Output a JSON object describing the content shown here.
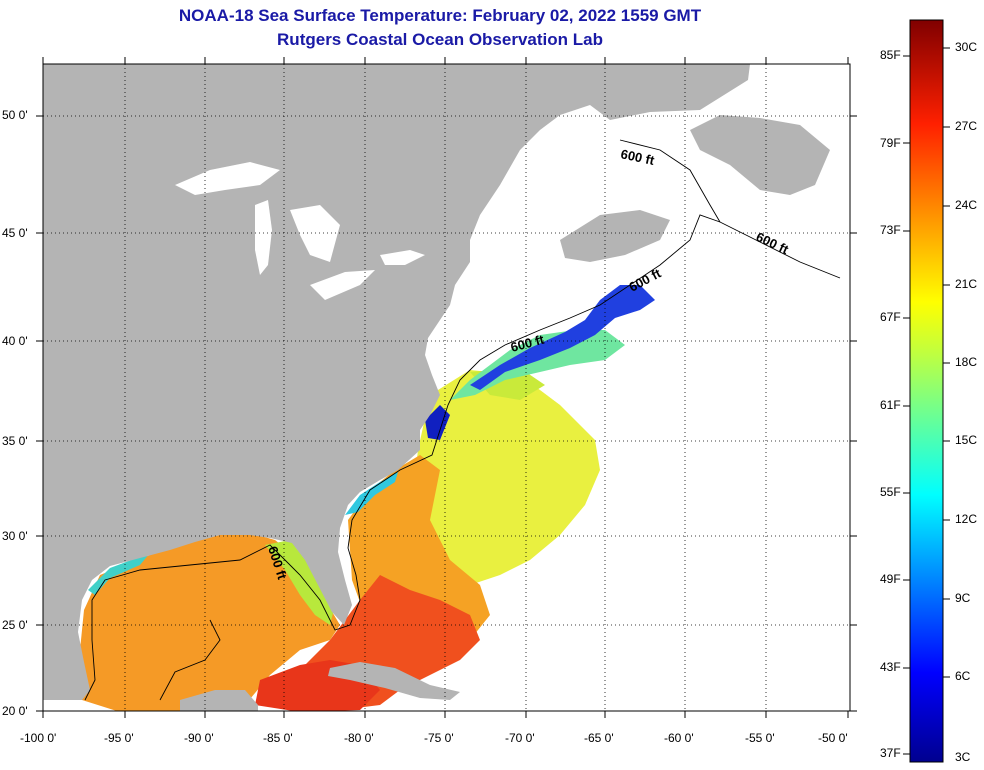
{
  "title": "NOAA-18 Sea Surface Temperature:  February 02, 2022 1559 GMT",
  "subtitle": "Rutgers Coastal Ocean Observation Lab",
  "lat_labels": [
    "50 0'",
    "45 0'",
    "40 0'",
    "35 0'",
    "30 0'",
    "25 0'",
    "20 0'"
  ],
  "lon_labels": [
    "-100 0'",
    "-95 0'",
    "-90 0'",
    "-85 0'",
    "-80 0'",
    "-75 0'",
    "-70 0'",
    "-65 0'",
    "-60 0'",
    "-55 0'",
    "-50 0'"
  ],
  "contour_labels": [
    "600 ft",
    "600 ft",
    "600 ft",
    "600 ft",
    "600 ft"
  ],
  "colorbar": {
    "fahrenheit": [
      "85F",
      "79F",
      "73F",
      "67F",
      "61F",
      "55F",
      "49F",
      "43F",
      "37F"
    ],
    "celsius": [
      "30C",
      "27C",
      "24C",
      "21C",
      "18C",
      "15C",
      "12C",
      "9C",
      "6C",
      "3C"
    ]
  },
  "colors": {
    "land": "#b4b4b4",
    "title": "#1a1aa6",
    "cold": "#00008f",
    "warm": "#800000"
  }
}
